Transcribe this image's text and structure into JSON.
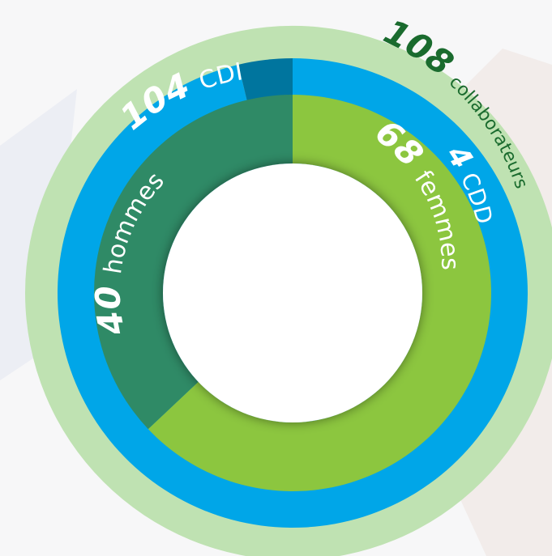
{
  "chart_data": {
    "type": "pie",
    "rings": [
      {
        "name": "",
        "slices": [
          {
            "label": "collaborateurs",
            "value": 108,
            "color": "#bfe2b2"
          }
        ]
      },
      {
        "name": "",
        "slices": [
          {
            "label": "CDI",
            "value": 104,
            "color": "#00a6e8"
          },
          {
            "label": "CDD",
            "value": 4,
            "color": "#00759e"
          }
        ]
      },
      {
        "name": "",
        "slices": [
          {
            "label": "femmes",
            "value": 68,
            "color": "#8cc63f"
          },
          {
            "label": "hommes",
            "value": 40,
            "color": "#2f8a66"
          }
        ]
      }
    ]
  },
  "labels": {
    "total": {
      "value": "108",
      "text": "collaborateurs"
    },
    "cdi": {
      "value": "104",
      "text": "CDI"
    },
    "cdd": {
      "value": "4",
      "text": "CDD"
    },
    "femmes": {
      "value": "68",
      "text": "femmes"
    },
    "hommes": {
      "value": "40",
      "text": "hommes"
    }
  },
  "colors": {
    "background": "#f7f7f8",
    "total_label": "#1a6b2e",
    "inner_label": "#ffffff",
    "center": "#ffffff"
  }
}
